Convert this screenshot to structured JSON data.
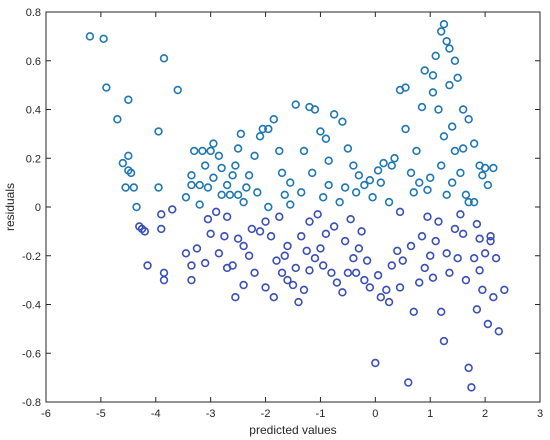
{
  "chart_data": {
    "type": "scatter",
    "title": "",
    "xlabel": "predicted values",
    "ylabel": "residuals",
    "xlim": [
      -6,
      3
    ],
    "ylim": [
      -0.8,
      0.8
    ],
    "x_ticks": [
      "-6",
      "-5",
      "-4",
      "-3",
      "-2",
      "-1",
      "0",
      "1",
      "2",
      "3"
    ],
    "y_ticks": [
      "-0.8",
      "-0.6",
      "-0.4",
      "-0.2",
      "0",
      "0.2",
      "0.4",
      "0.6",
      "0.8"
    ],
    "grid": false,
    "marker": "open-circle",
    "marker_color_top": "#1f78b4",
    "marker_color_bottom": "#3a4fb8",
    "series": [
      {
        "points": [
          [
            -5.2,
            0.7
          ],
          [
            -4.95,
            0.69
          ],
          [
            -4.9,
            0.49
          ],
          [
            -4.7,
            0.36
          ],
          [
            -4.5,
            0.44
          ],
          [
            -3.85,
            0.61
          ],
          [
            -3.6,
            0.48
          ],
          [
            -3.95,
            0.31
          ],
          [
            -4.6,
            0.18
          ],
          [
            -4.5,
            0.21
          ],
          [
            -4.55,
            0.08
          ],
          [
            -4.45,
            0.14
          ],
          [
            -4.4,
            0.08
          ],
          [
            -4.35,
            0.0
          ],
          [
            -4.5,
            0.15
          ],
          [
            -3.95,
            0.08
          ],
          [
            -3.7,
            -0.01
          ],
          [
            -3.9,
            -0.03
          ],
          [
            -4.25,
            -0.09
          ],
          [
            -4.2,
            -0.1
          ],
          [
            -4.3,
            -0.08
          ],
          [
            -3.9,
            -0.09
          ],
          [
            -4.15,
            -0.24
          ],
          [
            -3.85,
            -0.27
          ],
          [
            -3.85,
            -0.3
          ],
          [
            -3.45,
            -0.19
          ],
          [
            -3.35,
            -0.24
          ],
          [
            -3.35,
            -0.3
          ],
          [
            -3.1,
            -0.23
          ],
          [
            -3.45,
            0.04
          ],
          [
            -3.35,
            0.09
          ],
          [
            -3.35,
            0.13
          ],
          [
            -3.3,
            0.23
          ],
          [
            -3.15,
            0.23
          ],
          [
            -3.2,
            0.09
          ],
          [
            -3.05,
            0.08
          ],
          [
            -3.1,
            0.17
          ],
          [
            -3.0,
            0.23
          ],
          [
            -2.95,
            0.26
          ],
          [
            -2.85,
            0.21
          ],
          [
            -2.8,
            0.16
          ],
          [
            -2.7,
            0.09
          ],
          [
            -2.6,
            0.13
          ],
          [
            -2.5,
            0.24
          ],
          [
            -2.45,
            0.3
          ],
          [
            -2.65,
            0.05
          ],
          [
            -2.8,
            0.05
          ],
          [
            -2.5,
            0.05
          ],
          [
            -2.4,
            0.02
          ],
          [
            -2.3,
            0.13
          ],
          [
            -2.2,
            0.21
          ],
          [
            -2.1,
            0.29
          ],
          [
            -2.05,
            0.32
          ],
          [
            -1.95,
            0.32
          ],
          [
            -1.85,
            0.36
          ],
          [
            -1.75,
            0.23
          ],
          [
            -1.7,
            0.14
          ],
          [
            -1.65,
            0.05
          ],
          [
            -1.55,
            0.01
          ],
          [
            -1.45,
            0.42
          ],
          [
            -1.3,
            0.23
          ],
          [
            -1.2,
            0.41
          ],
          [
            -1.1,
            0.4
          ],
          [
            -1.0,
            0.31
          ],
          [
            -0.9,
            0.28
          ],
          [
            -0.85,
            0.19
          ],
          [
            -0.75,
            0.38
          ],
          [
            -0.6,
            0.35
          ],
          [
            -0.5,
            0.24
          ],
          [
            -0.4,
            0.17
          ],
          [
            -0.3,
            0.13
          ],
          [
            -0.2,
            0.09
          ],
          [
            -0.1,
            0.11
          ],
          [
            0.05,
            0.15
          ],
          [
            0.15,
            0.18
          ],
          [
            0.3,
            0.17
          ],
          [
            0.45,
            0.48
          ],
          [
            0.55,
            0.49
          ],
          [
            0.65,
            0.14
          ],
          [
            0.8,
            0.1
          ],
          [
            0.95,
            0.07
          ],
          [
            1.05,
            0.54
          ],
          [
            1.1,
            0.62
          ],
          [
            1.2,
            0.72
          ],
          [
            1.25,
            0.75
          ],
          [
            1.3,
            0.68
          ],
          [
            1.35,
            0.65
          ],
          [
            1.45,
            0.6
          ],
          [
            1.5,
            0.53
          ],
          [
            1.6,
            0.4
          ],
          [
            1.7,
            0.36
          ],
          [
            1.8,
            0.26
          ],
          [
            1.9,
            0.17
          ],
          [
            2.0,
            0.16
          ],
          [
            2.15,
            0.16
          ],
          [
            1.45,
            0.23
          ],
          [
            1.6,
            0.24
          ],
          [
            1.4,
            0.33
          ],
          [
            1.25,
            0.29
          ],
          [
            1.15,
            0.4
          ],
          [
            0.9,
            0.56
          ],
          [
            1.05,
            0.47
          ],
          [
            0.85,
            0.41
          ],
          [
            1.35,
            0.5
          ],
          [
            1.55,
            0.14
          ],
          [
            -2.9,
            -0.02
          ],
          [
            -2.7,
            -0.04
          ],
          [
            -2.5,
            -0.13
          ],
          [
            -2.4,
            -0.16
          ],
          [
            -2.3,
            -0.2
          ],
          [
            -2.25,
            -0.09
          ],
          [
            -2.1,
            -0.1
          ],
          [
            -2.0,
            -0.06
          ],
          [
            -1.9,
            -0.12
          ],
          [
            -1.8,
            -0.22
          ],
          [
            -1.7,
            -0.27
          ],
          [
            -1.6,
            -0.3
          ],
          [
            -1.5,
            -0.32
          ],
          [
            -1.4,
            -0.39
          ],
          [
            -1.3,
            -0.34
          ],
          [
            -1.2,
            -0.26
          ],
          [
            -1.1,
            -0.21
          ],
          [
            -1.0,
            -0.17
          ],
          [
            -0.9,
            -0.11
          ],
          [
            -0.8,
            -0.27
          ],
          [
            -0.7,
            -0.31
          ],
          [
            -0.6,
            -0.35
          ],
          [
            -0.5,
            -0.27
          ],
          [
            -0.4,
            -0.21
          ],
          [
            -0.3,
            -0.17
          ],
          [
            -0.2,
            -0.3
          ],
          [
            -0.1,
            -0.33
          ],
          [
            0.0,
            -0.64
          ],
          [
            0.1,
            -0.37
          ],
          [
            0.2,
            -0.34
          ],
          [
            0.3,
            -0.24
          ],
          [
            0.4,
            -0.18
          ],
          [
            0.5,
            -0.22
          ],
          [
            0.6,
            -0.72
          ],
          [
            0.7,
            -0.43
          ],
          [
            0.8,
            -0.31
          ],
          [
            0.9,
            -0.25
          ],
          [
            1.0,
            -0.2
          ],
          [
            1.1,
            -0.14
          ],
          [
            1.2,
            -0.43
          ],
          [
            1.25,
            -0.55
          ],
          [
            1.35,
            -0.27
          ],
          [
            1.5,
            -0.21
          ],
          [
            1.6,
            -0.11
          ],
          [
            1.7,
            -0.66
          ],
          [
            1.75,
            -0.74
          ],
          [
            1.85,
            -0.42
          ],
          [
            1.95,
            -0.34
          ],
          [
            2.05,
            -0.48
          ],
          [
            2.15,
            -0.37
          ],
          [
            2.25,
            -0.51
          ],
          [
            2.35,
            -0.34
          ],
          [
            2.0,
            -0.19
          ],
          [
            1.9,
            -0.13
          ],
          [
            1.8,
            -0.21
          ],
          [
            -2.6,
            -0.24
          ],
          [
            -2.4,
            -0.32
          ],
          [
            -2.2,
            -0.27
          ],
          [
            -2.0,
            -0.33
          ],
          [
            -1.85,
            -0.37
          ],
          [
            -1.6,
            -0.16
          ],
          [
            -1.35,
            -0.12
          ],
          [
            -1.2,
            -0.06
          ],
          [
            -1.05,
            -0.03
          ],
          [
            -0.95,
            0.04
          ],
          [
            -0.65,
            0.02
          ],
          [
            -0.45,
            -0.05
          ],
          [
            -0.25,
            -0.1
          ],
          [
            -0.05,
            0.04
          ],
          [
            0.25,
            0.02
          ],
          [
            0.45,
            -0.02
          ],
          [
            0.7,
            0.06
          ],
          [
            0.95,
            -0.04
          ],
          [
            1.15,
            -0.06
          ],
          [
            1.3,
            0.05
          ],
          [
            1.55,
            -0.03
          ],
          [
            1.7,
            0.02
          ],
          [
            1.85,
            -0.07
          ],
          [
            2.05,
            0.09
          ],
          [
            1.95,
            0.13
          ],
          [
            -3.25,
            -0.17
          ],
          [
            -3.0,
            -0.11
          ],
          [
            -2.85,
            -0.19
          ],
          [
            -2.7,
            -0.25
          ],
          [
            -2.55,
            -0.37
          ],
          [
            -2.75,
            -0.12
          ],
          [
            -3.05,
            -0.05
          ],
          [
            -3.2,
            0.01
          ],
          [
            -2.95,
            0.12
          ],
          [
            -2.55,
            0.17
          ],
          [
            -2.35,
            0.08
          ],
          [
            -2.15,
            0.06
          ],
          [
            -1.95,
            0.0
          ],
          [
            -1.75,
            -0.04
          ],
          [
            -1.55,
            0.1
          ],
          [
            -1.35,
            0.06
          ],
          [
            -1.15,
            0.14
          ],
          [
            -0.85,
            0.09
          ],
          [
            -0.55,
            0.08
          ],
          [
            -0.35,
            0.06
          ],
          [
            0.1,
            0.1
          ],
          [
            0.35,
            0.2
          ],
          [
            0.55,
            0.32
          ],
          [
            0.75,
            0.23
          ],
          [
            1.0,
            0.12
          ],
          [
            1.2,
            0.17
          ],
          [
            1.4,
            0.1
          ],
          [
            1.65,
            0.05
          ],
          [
            1.8,
            0.02
          ],
          [
            2.1,
            -0.12
          ],
          [
            -1.65,
            -0.2
          ],
          [
            -1.45,
            -0.25
          ],
          [
            -1.25,
            -0.18
          ],
          [
            -0.95,
            -0.24
          ],
          [
            -0.75,
            -0.08
          ],
          [
            -0.55,
            -0.14
          ],
          [
            -0.35,
            -0.27
          ],
          [
            -0.15,
            -0.22
          ],
          [
            0.05,
            -0.28
          ],
          [
            0.25,
            -0.39
          ],
          [
            0.45,
            -0.33
          ],
          [
            0.65,
            -0.16
          ],
          [
            0.85,
            -0.12
          ],
          [
            1.05,
            -0.29
          ],
          [
            1.3,
            -0.19
          ],
          [
            1.45,
            -0.09
          ],
          [
            1.65,
            -0.3
          ],
          [
            1.9,
            -0.26
          ],
          [
            2.1,
            -0.14
          ],
          [
            2.2,
            -0.21
          ]
        ]
      }
    ]
  }
}
